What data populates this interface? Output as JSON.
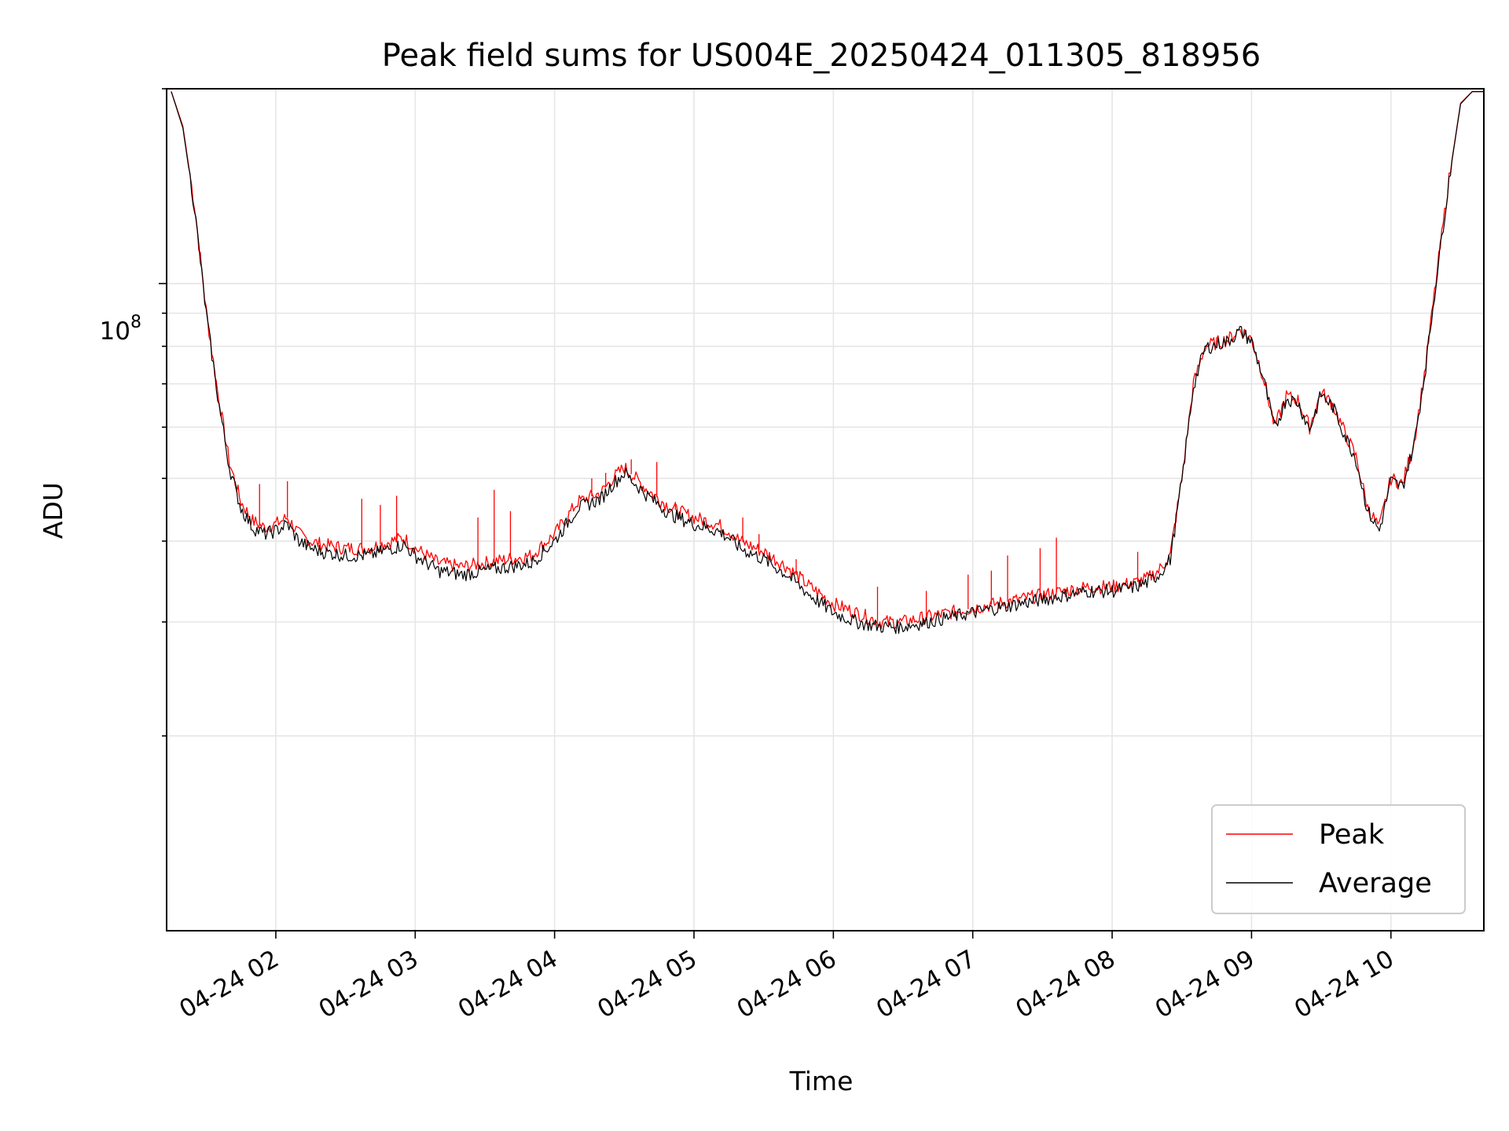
{
  "chart_data": {
    "type": "line",
    "title": "Peak field sums for US004E_20250424_011305_818956",
    "xlabel": "Time",
    "ylabel": "ADU",
    "yscale": "log",
    "ylim": [
      10000000,
      200000000
    ],
    "xlim": [
      "2025-04-24 01:13",
      "2025-04-24 10:40"
    ],
    "grid": true,
    "legend_position": "lower right",
    "x_tick_labels": [
      "04-24 02",
      "04-24 03",
      "04-24 04",
      "04-24 05",
      "04-24 06",
      "04-24 07",
      "04-24 08",
      "04-24 09",
      "04-24 10"
    ],
    "y_tick_label": {
      "base": "10",
      "exp": "8"
    },
    "x": [
      "01:15",
      "01:20",
      "01:25",
      "01:30",
      "01:35",
      "01:40",
      "01:45",
      "01:50",
      "01:55",
      "02:00",
      "02:05",
      "02:10",
      "02:15",
      "02:20",
      "02:30",
      "02:40",
      "02:50",
      "02:55",
      "03:00",
      "03:10",
      "03:20",
      "03:30",
      "03:40",
      "03:50",
      "04:00",
      "04:10",
      "04:20",
      "04:25",
      "04:30",
      "04:40",
      "04:50",
      "05:00",
      "05:10",
      "05:15",
      "05:20",
      "05:30",
      "05:40",
      "05:50",
      "06:00",
      "06:10",
      "06:20",
      "06:30",
      "06:40",
      "06:50",
      "07:00",
      "07:10",
      "07:20",
      "07:30",
      "07:40",
      "07:50",
      "08:00",
      "08:10",
      "08:15",
      "08:20",
      "08:25",
      "08:30",
      "08:35",
      "08:40",
      "08:45",
      "08:50",
      "08:55",
      "09:00",
      "09:05",
      "09:10",
      "09:15",
      "09:20",
      "09:25",
      "09:30",
      "09:35",
      "09:40",
      "09:45",
      "09:50",
      "09:55",
      "10:00",
      "10:05",
      "10:10",
      "10:15",
      "10:20",
      "10:25",
      "10:30",
      "10:35",
      "10:40"
    ],
    "series": [
      {
        "name": "Peak",
        "color": "#ff0000",
        "values": [
          198000000,
          175000000,
          132000000,
          91000000,
          68000000,
          53000000,
          46000000,
          43000000,
          42000000,
          42500000,
          43500000,
          41000000,
          40000000,
          39500000,
          39000000,
          39000000,
          40000000,
          40500000,
          39000000,
          37000000,
          36500000,
          37000000,
          37500000,
          38000000,
          41000000,
          46000000,
          47500000,
          50000000,
          52000000,
          48000000,
          45000000,
          43500000,
          42500000,
          41500000,
          40000000,
          38500000,
          36500000,
          34000000,
          32000000,
          31000000,
          30000000,
          30000000,
          30500000,
          31000000,
          31500000,
          32000000,
          32500000,
          33000000,
          33500000,
          34000000,
          34000000,
          34500000,
          35000000,
          36000000,
          38000000,
          50000000,
          70000000,
          80000000,
          81000000,
          82000000,
          85000000,
          82000000,
          72000000,
          60000000,
          67000000,
          66000000,
          60000000,
          68000000,
          65000000,
          59000000,
          54000000,
          45000000,
          42000000,
          50000000,
          49000000,
          57000000,
          75000000,
          105000000,
          145000000,
          190000000,
          198000000,
          198000000
        ]
      },
      {
        "name": "Average",
        "color": "#000000",
        "values": [
          198000000,
          174000000,
          131000000,
          90000000,
          67000000,
          52000000,
          45000000,
          42000000,
          41000000,
          41500000,
          42500000,
          40000000,
          39000000,
          38500000,
          38000000,
          38000000,
          39000000,
          39500000,
          38000000,
          36000000,
          35500000,
          36000000,
          36500000,
          37000000,
          40000000,
          45000000,
          46500000,
          49000000,
          51000000,
          47000000,
          44000000,
          42500000,
          41500000,
          40500000,
          39000000,
          37500000,
          35500000,
          33000000,
          31000000,
          30000000,
          29500000,
          29500000,
          30000000,
          30500000,
          31000000,
          31500000,
          32000000,
          32500000,
          33000000,
          33500000,
          33500000,
          34000000,
          34500000,
          35500000,
          37500000,
          49500000,
          69500000,
          79500000,
          80500000,
          81500000,
          84500000,
          81500000,
          71500000,
          59500000,
          66500000,
          65500000,
          59500000,
          67500000,
          64500000,
          58500000,
          53500000,
          44500000,
          41500000,
          49500000,
          48500000,
          56500000,
          74500000,
          104500000,
          144500000,
          189500000,
          198000000,
          198000000
        ]
      }
    ],
    "spikes": {
      "series": "Peak",
      "points": [
        {
          "x": "01:53",
          "y": 49000000
        },
        {
          "x": "02:05",
          "y": 49500000
        },
        {
          "x": "02:37",
          "y": 46500000
        },
        {
          "x": "02:45",
          "y": 45500000
        },
        {
          "x": "02:52",
          "y": 47000000
        },
        {
          "x": "03:27",
          "y": 43500000
        },
        {
          "x": "03:34",
          "y": 48000000
        },
        {
          "x": "03:41",
          "y": 44500000
        },
        {
          "x": "04:16",
          "y": 50000000
        },
        {
          "x": "04:22",
          "y": 51000000
        },
        {
          "x": "04:33",
          "y": 53500000
        },
        {
          "x": "04:44",
          "y": 53000000
        },
        {
          "x": "04:52",
          "y": 46000000
        },
        {
          "x": "05:21",
          "y": 43500000
        },
        {
          "x": "05:28",
          "y": 41000000
        },
        {
          "x": "05:44",
          "y": 37500000
        },
        {
          "x": "06:19",
          "y": 34000000
        },
        {
          "x": "06:40",
          "y": 33500000
        },
        {
          "x": "06:58",
          "y": 35500000
        },
        {
          "x": "07:08",
          "y": 36000000
        },
        {
          "x": "07:15",
          "y": 38000000
        },
        {
          "x": "07:29",
          "y": 39000000
        },
        {
          "x": "07:36",
          "y": 40500000
        },
        {
          "x": "08:11",
          "y": 38500000
        }
      ]
    }
  }
}
